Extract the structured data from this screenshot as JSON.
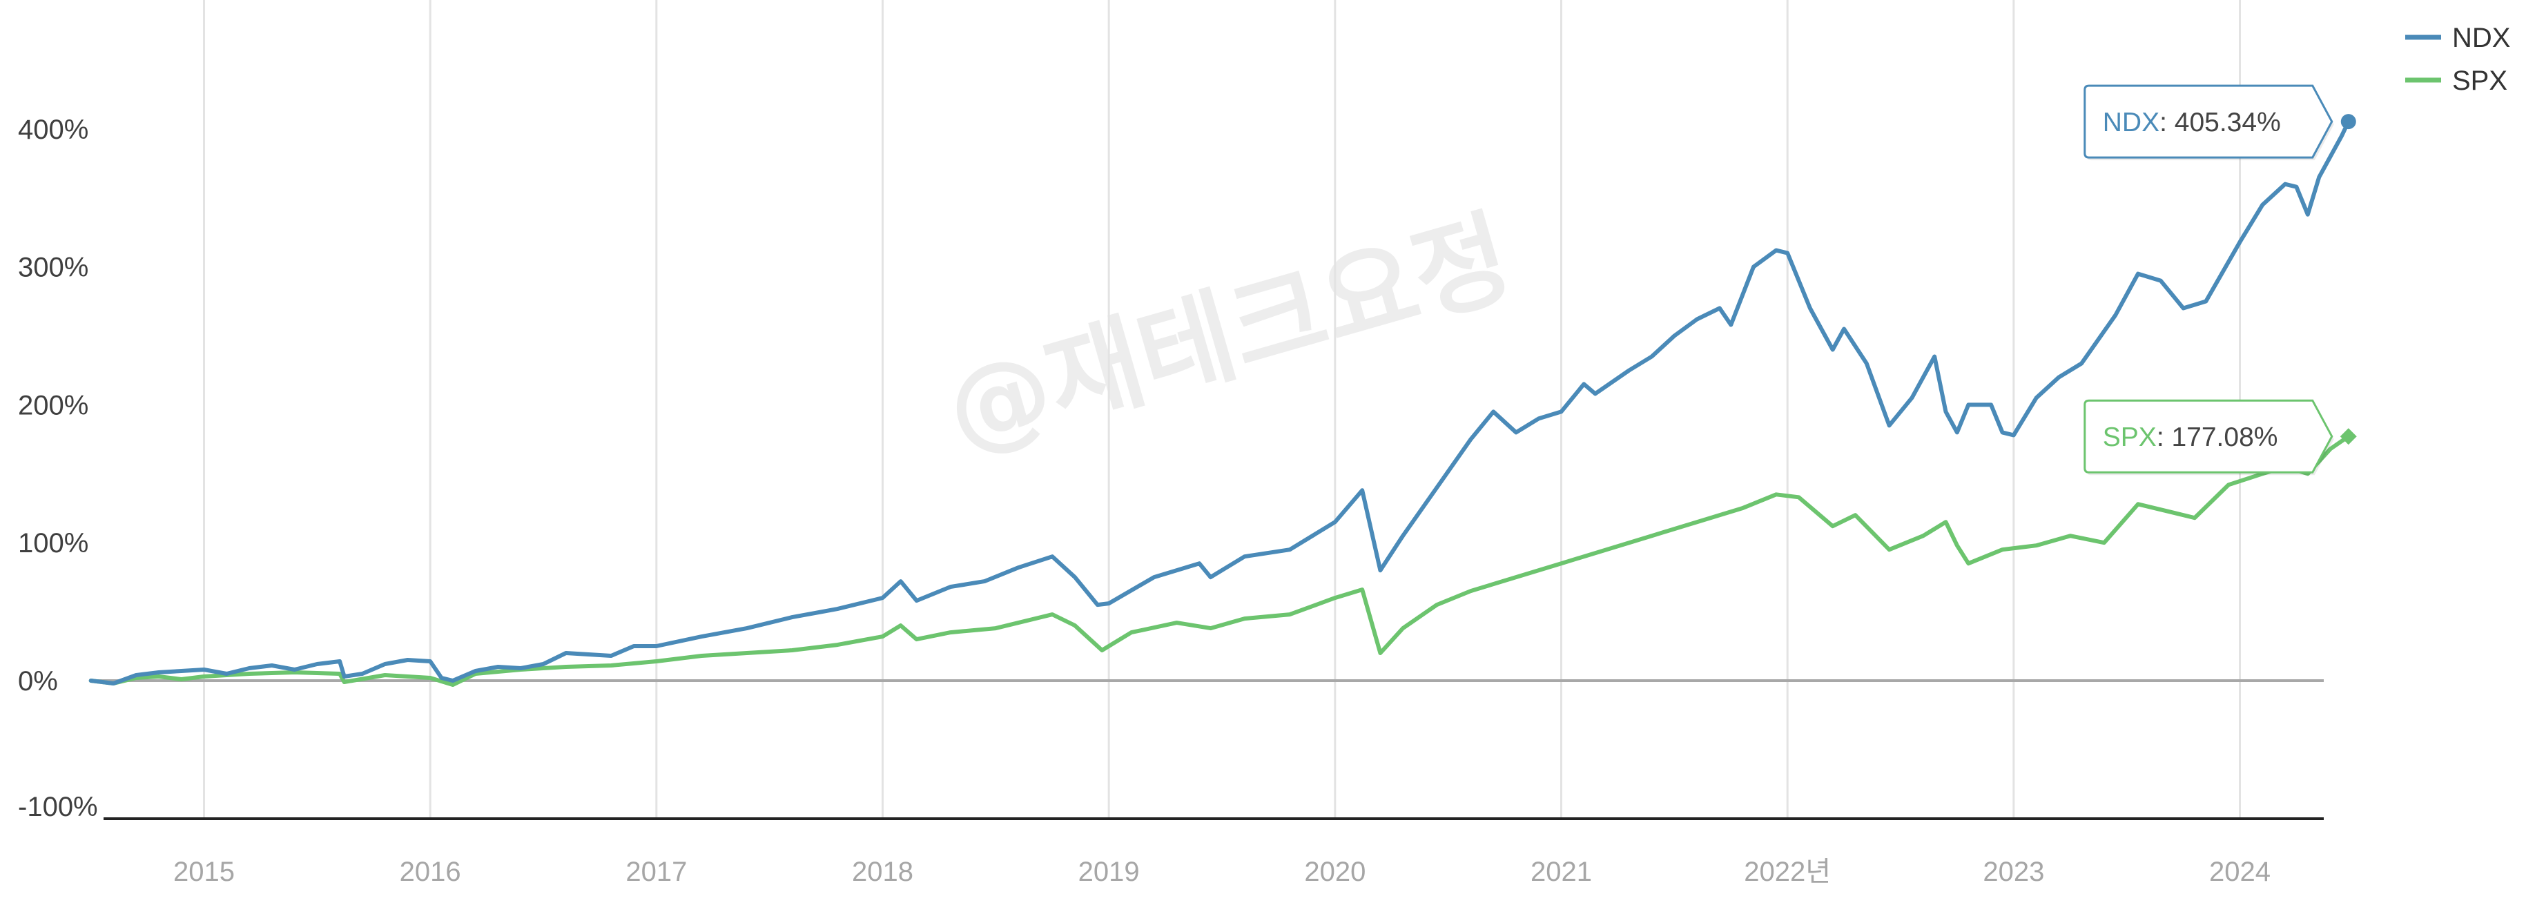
{
  "chart_data": {
    "type": "line",
    "watermark": "@재테크요정",
    "x_range": [
      2014.5,
      2024.5
    ],
    "ylim": [
      -100,
      420
    ],
    "y_ticks": [
      {
        "value": 400,
        "label": "400%"
      },
      {
        "value": 300,
        "label": "300%"
      },
      {
        "value": 200,
        "label": "200%"
      },
      {
        "value": 100,
        "label": "100%"
      },
      {
        "value": 0,
        "label": "0%"
      },
      {
        "value": -100,
        "label": "-100%"
      }
    ],
    "x_ticks": [
      {
        "value": 2015,
        "label": "2015"
      },
      {
        "value": 2016,
        "label": "2016"
      },
      {
        "value": 2017,
        "label": "2017"
      },
      {
        "value": 2018,
        "label": "2018"
      },
      {
        "value": 2019,
        "label": "2019"
      },
      {
        "value": 2020,
        "label": "2020"
      },
      {
        "value": 2021,
        "label": "2021"
      },
      {
        "value": 2022,
        "label": "2022년"
      },
      {
        "value": 2023,
        "label": "2023"
      },
      {
        "value": 2024,
        "label": "2024"
      }
    ],
    "grid": "vertical",
    "legend": {
      "position": "top-right",
      "entries": [
        "NDX",
        "SPX"
      ]
    },
    "series": [
      {
        "name": "NDX",
        "color": "#4a8ab8",
        "marker": "circle",
        "last_label": "405.34%",
        "points": [
          [
            2014.5,
            0
          ],
          [
            2014.6,
            -2
          ],
          [
            2014.7,
            4
          ],
          [
            2014.8,
            6
          ],
          [
            2014.9,
            7
          ],
          [
            2015.0,
            8
          ],
          [
            2015.1,
            5
          ],
          [
            2015.2,
            9
          ],
          [
            2015.3,
            11
          ],
          [
            2015.4,
            8
          ],
          [
            2015.5,
            12
          ],
          [
            2015.6,
            14
          ],
          [
            2015.62,
            3
          ],
          [
            2015.7,
            5
          ],
          [
            2015.8,
            12
          ],
          [
            2015.9,
            15
          ],
          [
            2016.0,
            14
          ],
          [
            2016.05,
            2
          ],
          [
            2016.1,
            0
          ],
          [
            2016.2,
            7
          ],
          [
            2016.3,
            10
          ],
          [
            2016.4,
            9
          ],
          [
            2016.5,
            12
          ],
          [
            2016.6,
            20
          ],
          [
            2016.8,
            18
          ],
          [
            2016.9,
            25
          ],
          [
            2017.0,
            25
          ],
          [
            2017.2,
            32
          ],
          [
            2017.4,
            38
          ],
          [
            2017.6,
            46
          ],
          [
            2017.8,
            52
          ],
          [
            2018.0,
            60
          ],
          [
            2018.08,
            72
          ],
          [
            2018.15,
            58
          ],
          [
            2018.3,
            68
          ],
          [
            2018.45,
            72
          ],
          [
            2018.6,
            82
          ],
          [
            2018.75,
            90
          ],
          [
            2018.85,
            75
          ],
          [
            2018.95,
            55
          ],
          [
            2019.0,
            56
          ],
          [
            2019.2,
            75
          ],
          [
            2019.4,
            85
          ],
          [
            2019.45,
            75
          ],
          [
            2019.6,
            90
          ],
          [
            2019.8,
            95
          ],
          [
            2020.0,
            115
          ],
          [
            2020.12,
            138
          ],
          [
            2020.2,
            80
          ],
          [
            2020.3,
            105
          ],
          [
            2020.45,
            140
          ],
          [
            2020.6,
            175
          ],
          [
            2020.7,
            195
          ],
          [
            2020.8,
            180
          ],
          [
            2020.9,
            190
          ],
          [
            2021.0,
            195
          ],
          [
            2021.1,
            215
          ],
          [
            2021.15,
            208
          ],
          [
            2021.3,
            225
          ],
          [
            2021.4,
            235
          ],
          [
            2021.5,
            250
          ],
          [
            2021.6,
            262
          ],
          [
            2021.7,
            270
          ],
          [
            2021.75,
            258
          ],
          [
            2021.85,
            300
          ],
          [
            2021.95,
            312
          ],
          [
            2022.0,
            310
          ],
          [
            2022.1,
            270
          ],
          [
            2022.2,
            240
          ],
          [
            2022.25,
            255
          ],
          [
            2022.35,
            230
          ],
          [
            2022.45,
            185
          ],
          [
            2022.55,
            205
          ],
          [
            2022.65,
            235
          ],
          [
            2022.7,
            195
          ],
          [
            2022.75,
            180
          ],
          [
            2022.8,
            200
          ],
          [
            2022.9,
            200
          ],
          [
            2022.95,
            180
          ],
          [
            2023.0,
            178
          ],
          [
            2023.1,
            205
          ],
          [
            2023.2,
            220
          ],
          [
            2023.3,
            230
          ],
          [
            2023.45,
            265
          ],
          [
            2023.55,
            295
          ],
          [
            2023.65,
            290
          ],
          [
            2023.75,
            270
          ],
          [
            2023.85,
            275
          ],
          [
            2024.0,
            318
          ],
          [
            2024.1,
            345
          ],
          [
            2024.2,
            360
          ],
          [
            2024.25,
            358
          ],
          [
            2024.3,
            338
          ],
          [
            2024.35,
            365
          ],
          [
            2024.45,
            395
          ],
          [
            2024.48,
            405.34
          ]
        ]
      },
      {
        "name": "SPX",
        "color": "#6cc46e",
        "marker": "diamond",
        "last_label": "177.08%",
        "points": [
          [
            2014.5,
            0
          ],
          [
            2014.6,
            -2
          ],
          [
            2014.7,
            2
          ],
          [
            2014.8,
            3
          ],
          [
            2014.9,
            1
          ],
          [
            2015.0,
            3
          ],
          [
            2015.2,
            5
          ],
          [
            2015.4,
            6
          ],
          [
            2015.6,
            5
          ],
          [
            2015.62,
            -1
          ],
          [
            2015.8,
            4
          ],
          [
            2016.0,
            2
          ],
          [
            2016.1,
            -3
          ],
          [
            2016.2,
            5
          ],
          [
            2016.4,
            8
          ],
          [
            2016.6,
            10
          ],
          [
            2016.8,
            11
          ],
          [
            2017.0,
            14
          ],
          [
            2017.2,
            18
          ],
          [
            2017.4,
            20
          ],
          [
            2017.6,
            22
          ],
          [
            2017.8,
            26
          ],
          [
            2018.0,
            32
          ],
          [
            2018.08,
            40
          ],
          [
            2018.15,
            30
          ],
          [
            2018.3,
            35
          ],
          [
            2018.5,
            38
          ],
          [
            2018.75,
            48
          ],
          [
            2018.85,
            40
          ],
          [
            2018.97,
            22
          ],
          [
            2019.1,
            35
          ],
          [
            2019.3,
            42
          ],
          [
            2019.45,
            38
          ],
          [
            2019.6,
            45
          ],
          [
            2019.8,
            48
          ],
          [
            2020.0,
            60
          ],
          [
            2020.12,
            66
          ],
          [
            2020.2,
            20
          ],
          [
            2020.3,
            38
          ],
          [
            2020.45,
            55
          ],
          [
            2020.6,
            65
          ],
          [
            2020.8,
            75
          ],
          [
            2021.0,
            85
          ],
          [
            2021.2,
            95
          ],
          [
            2021.4,
            105
          ],
          [
            2021.6,
            115
          ],
          [
            2021.8,
            125
          ],
          [
            2021.95,
            135
          ],
          [
            2022.05,
            133
          ],
          [
            2022.2,
            112
          ],
          [
            2022.3,
            120
          ],
          [
            2022.45,
            95
          ],
          [
            2022.6,
            105
          ],
          [
            2022.7,
            115
          ],
          [
            2022.75,
            98
          ],
          [
            2022.8,
            85
          ],
          [
            2022.95,
            95
          ],
          [
            2023.1,
            98
          ],
          [
            2023.25,
            105
          ],
          [
            2023.4,
            100
          ],
          [
            2023.55,
            128
          ],
          [
            2023.7,
            122
          ],
          [
            2023.8,
            118
          ],
          [
            2023.95,
            142
          ],
          [
            2024.1,
            150
          ],
          [
            2024.2,
            155
          ],
          [
            2024.3,
            150
          ],
          [
            2024.4,
            168
          ],
          [
            2024.48,
            177.08
          ]
        ]
      }
    ]
  }
}
